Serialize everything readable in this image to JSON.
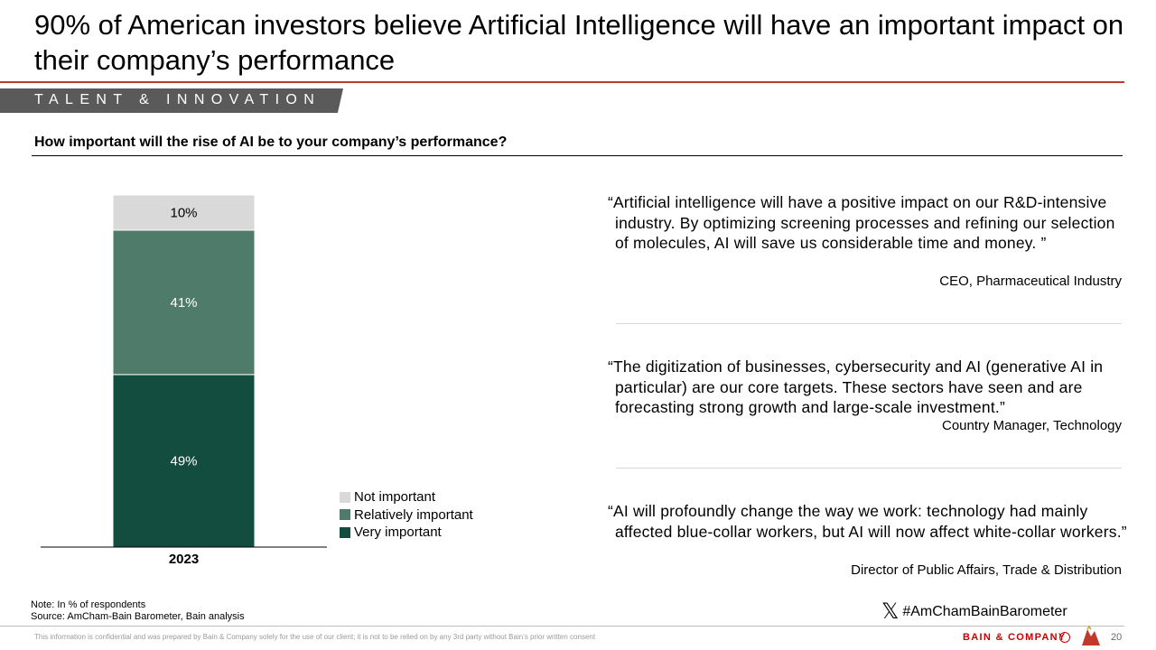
{
  "header": {
    "title": "90% of American investors believe Artificial Intelligence will have an important impact on their company’s performance",
    "section": "TALENT & INNOVATION",
    "question": "How important will the rise of AI be to your company’s performance?"
  },
  "chart_data": {
    "type": "bar",
    "stacked": true,
    "categories": [
      "2023"
    ],
    "series": [
      {
        "name": "Very important",
        "values": [
          49
        ],
        "color": "#134d3f",
        "label": "49%"
      },
      {
        "name": "Relatively important",
        "values": [
          41
        ],
        "color": "#4f7b6a",
        "label": "41%"
      },
      {
        "name": "Not important",
        "values": [
          10
        ],
        "color": "#d9d9d9",
        "label": "10%"
      }
    ],
    "ylim": [
      0,
      100
    ],
    "unit": "%",
    "legend_position": "right",
    "legend_order": [
      "Not important",
      "Relatively important",
      "Very important"
    ],
    "grid": false
  },
  "quotes": [
    {
      "text": "“Artificial intelligence will have a positive impact on our R&D-intensive industry. By optimizing screening processes and refining our selection of molecules, AI will save us considerable time and money. ”",
      "attribution": "CEO, Pharmaceutical Industry"
    },
    {
      "text": "“The digitization of businesses, cybersecurity and AI (generative AI in particular) are our core targets. These sectors have seen and are forecasting strong growth and large-scale investment.”",
      "attribution": "Country Manager, Technology"
    },
    {
      "text": "“AI will profoundly change the way we work: technology had mainly affected blue-collar workers, but AI will now affect white-collar workers.”",
      "attribution": "Director of Public Affairs, Trade & Distribution"
    }
  ],
  "footer": {
    "note": "Note: In % of respondents",
    "source": "Source: AmCham-Bain Barometer, Bain analysis",
    "hashtag": "#AmChamBainBarometer",
    "x_symbol": "𝕏",
    "confidential": "This information is confidential and was prepared by Bain & Company solely for the use of our client; it is not to be relied on by any 3rd party without Bain’s prior written consent",
    "brand": "BAIN & COMPANY",
    "page_number": "20"
  }
}
